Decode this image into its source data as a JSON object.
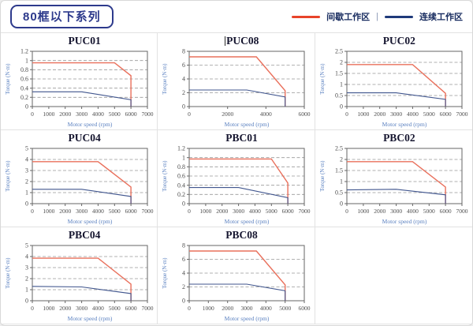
{
  "page": {
    "title": "80框以下系列",
    "legend": {
      "intermittent_label": "间歇工作区",
      "continuous_label": "连续工作区",
      "separator": "|",
      "intermittent_color": "#e8432a",
      "continuous_color": "#1f3a7a"
    }
  },
  "chart_style": {
    "grid_color": "#999999",
    "axis_box_color": "#666666",
    "tick_label_color": "#4d4d4d",
    "axis_label_color": "#5c82c1",
    "title_color": "#15152f",
    "line_colors": {
      "间歇工作区": "#e9705c",
      "连续工作区": "#41568e"
    },
    "line_widths": {
      "间歇工作区": 1.4,
      "连续工作区": 1.1
    }
  },
  "chart_data": [
    {
      "type": "line",
      "title": "PUC01",
      "cursor_before_title": false,
      "xlabel": "Motor speed (rpm)",
      "ylabel": "Torque (N·m)",
      "xlim": [
        0,
        7000
      ],
      "ylim": [
        0,
        1.2
      ],
      "xticks": [
        0,
        1000,
        2000,
        3000,
        4000,
        5000,
        6000,
        7000
      ],
      "yticks": [
        0,
        0.2,
        0.4,
        0.6,
        0.8,
        1,
        1.2
      ],
      "grid": "horizontal-dashed",
      "legend_position": "none",
      "series": [
        {
          "name": "间歇工作区",
          "points": [
            [
              0,
              0.95
            ],
            [
              5000,
              0.95
            ],
            [
              6000,
              0.67
            ],
            [
              6000,
              0
            ]
          ]
        },
        {
          "name": "连续工作区",
          "points": [
            [
              0,
              0.32
            ],
            [
              3000,
              0.32
            ],
            [
              6000,
              0.15
            ],
            [
              6000,
              0
            ]
          ]
        }
      ]
    },
    {
      "type": "line",
      "title": "PUC08",
      "cursor_before_title": true,
      "xlabel": "Motor speed (rpm)",
      "ylabel": "Torque (N·m)",
      "xlim": [
        0,
        6000
      ],
      "ylim": [
        0,
        8
      ],
      "xticks": [
        0,
        2000,
        4000,
        6000
      ],
      "yticks": [
        0,
        2,
        4,
        6,
        8
      ],
      "grid": "horizontal-dashed",
      "legend_position": "none",
      "series": [
        {
          "name": "间歇工作区",
          "points": [
            [
              0,
              7.2
            ],
            [
              3500,
              7.2
            ],
            [
              5000,
              2.3
            ],
            [
              5000,
              0
            ]
          ]
        },
        {
          "name": "连续工作区",
          "points": [
            [
              0,
              2.4
            ],
            [
              3000,
              2.4
            ],
            [
              5000,
              1.4
            ],
            [
              5000,
              0
            ]
          ]
        }
      ]
    },
    {
      "type": "line",
      "title": "PUC02",
      "cursor_before_title": false,
      "xlabel": "Motor speed (rpm)",
      "ylabel": "Torque (N·m)",
      "xlim": [
        0,
        7000
      ],
      "ylim": [
        0,
        2.5
      ],
      "xticks": [
        0,
        1000,
        2000,
        3000,
        4000,
        5000,
        6000,
        7000
      ],
      "yticks": [
        0,
        0.5,
        1,
        1.5,
        2,
        2.5
      ],
      "grid": "horizontal-dashed",
      "legend_position": "none",
      "series": [
        {
          "name": "间歇工作区",
          "points": [
            [
              0,
              1.9
            ],
            [
              4000,
              1.9
            ],
            [
              6000,
              0.6
            ],
            [
              6000,
              0
            ]
          ]
        },
        {
          "name": "连续工作区",
          "points": [
            [
              0,
              0.62
            ],
            [
              3000,
              0.62
            ],
            [
              6000,
              0.33
            ],
            [
              6000,
              0
            ]
          ]
        }
      ]
    },
    {
      "type": "line",
      "title": "PUC04",
      "cursor_before_title": false,
      "xlabel": "Motor speed (rpm)",
      "ylabel": "Torque (N·m)",
      "xlim": [
        0,
        7000
      ],
      "ylim": [
        0,
        5
      ],
      "xticks": [
        0,
        1000,
        2000,
        3000,
        4000,
        5000,
        6000,
        7000
      ],
      "yticks": [
        0,
        1,
        2,
        3,
        4,
        5
      ],
      "grid": "horizontal-dashed",
      "legend_position": "none",
      "series": [
        {
          "name": "间歇工作区",
          "points": [
            [
              0,
              3.8
            ],
            [
              4000,
              3.8
            ],
            [
              6000,
              1.5
            ],
            [
              6000,
              0
            ]
          ]
        },
        {
          "name": "连续工作区",
          "points": [
            [
              0,
              1.3
            ],
            [
              3000,
              1.3
            ],
            [
              6000,
              0.65
            ],
            [
              6000,
              0
            ]
          ]
        }
      ]
    },
    {
      "type": "line",
      "title": "PBC01",
      "cursor_before_title": false,
      "xlabel": "Motor speed (rpm)",
      "ylabel": "Torque (N·m)",
      "xlim": [
        0,
        7000
      ],
      "ylim": [
        0,
        1.2
      ],
      "xticks": [
        0,
        1000,
        2000,
        3000,
        4000,
        5000,
        6000,
        7000
      ],
      "yticks": [
        0,
        0.2,
        0.4,
        0.6,
        0.8,
        1,
        1.2
      ],
      "grid": "horizontal-dashed",
      "legend_position": "none",
      "series": [
        {
          "name": "间歇工作区",
          "points": [
            [
              0,
              0.97
            ],
            [
              5000,
              0.97
            ],
            [
              6000,
              0.45
            ],
            [
              6000,
              0
            ]
          ]
        },
        {
          "name": "连续工作区",
          "points": [
            [
              0,
              0.35
            ],
            [
              3000,
              0.35
            ],
            [
              6000,
              0.13
            ],
            [
              6000,
              0
            ]
          ]
        }
      ]
    },
    {
      "type": "line",
      "title": "PBC02",
      "cursor_before_title": false,
      "xlabel": "Motor speed (rpm)",
      "ylabel": "Torque (N·m)",
      "xlim": [
        0,
        7000
      ],
      "ylim": [
        0,
        2.5
      ],
      "xticks": [
        0,
        1000,
        2000,
        3000,
        4000,
        5000,
        6000,
        7000
      ],
      "yticks": [
        0,
        0.5,
        1,
        1.5,
        2,
        2.5
      ],
      "grid": "horizontal-dashed",
      "legend_position": "none",
      "series": [
        {
          "name": "间歇工作区",
          "points": [
            [
              0,
              1.9
            ],
            [
              4000,
              1.9
            ],
            [
              6000,
              0.75
            ],
            [
              6000,
              0
            ]
          ]
        },
        {
          "name": "连续工作区",
          "points": [
            [
              0,
              0.62
            ],
            [
              3000,
              0.65
            ],
            [
              6000,
              0.4
            ],
            [
              6000,
              0
            ]
          ]
        }
      ]
    },
    {
      "type": "line",
      "title": "PBC04",
      "cursor_before_title": false,
      "xlabel": "Motor speed (rpm)",
      "ylabel": "Torque (N·m)",
      "xlim": [
        0,
        7000
      ],
      "ylim": [
        0,
        5
      ],
      "xticks": [
        0,
        1000,
        2000,
        3000,
        4000,
        5000,
        6000,
        7000
      ],
      "yticks": [
        0,
        1,
        2,
        3,
        4,
        5
      ],
      "grid": "horizontal-dashed",
      "legend_position": "none",
      "series": [
        {
          "name": "间歇工作区",
          "points": [
            [
              0,
              3.85
            ],
            [
              4000,
              3.85
            ],
            [
              6000,
              1.5
            ],
            [
              6000,
              0
            ]
          ]
        },
        {
          "name": "连续工作区",
          "points": [
            [
              0,
              1.3
            ],
            [
              3000,
              1.25
            ],
            [
              6000,
              0.65
            ],
            [
              6000,
              0
            ]
          ]
        }
      ]
    },
    {
      "type": "line",
      "title": "PBC08",
      "cursor_before_title": false,
      "xlabel": "Motor speed (rpm)",
      "ylabel": "Torque (N·m)",
      "xlim": [
        0,
        6000
      ],
      "ylim": [
        0,
        8
      ],
      "xticks": [
        0,
        1000,
        2000,
        3000,
        4000,
        5000,
        6000
      ],
      "yticks": [
        0,
        2,
        4,
        6,
        8
      ],
      "grid": "horizontal-dashed",
      "legend_position": "none",
      "series": [
        {
          "name": "间歇工作区",
          "points": [
            [
              0,
              7.2
            ],
            [
              3500,
              7.2
            ],
            [
              5000,
              2.3
            ],
            [
              5000,
              0
            ]
          ]
        },
        {
          "name": "连续工作区",
          "points": [
            [
              0,
              2.4
            ],
            [
              3000,
              2.4
            ],
            [
              5000,
              1.45
            ],
            [
              5000,
              0
            ]
          ]
        }
      ]
    }
  ]
}
